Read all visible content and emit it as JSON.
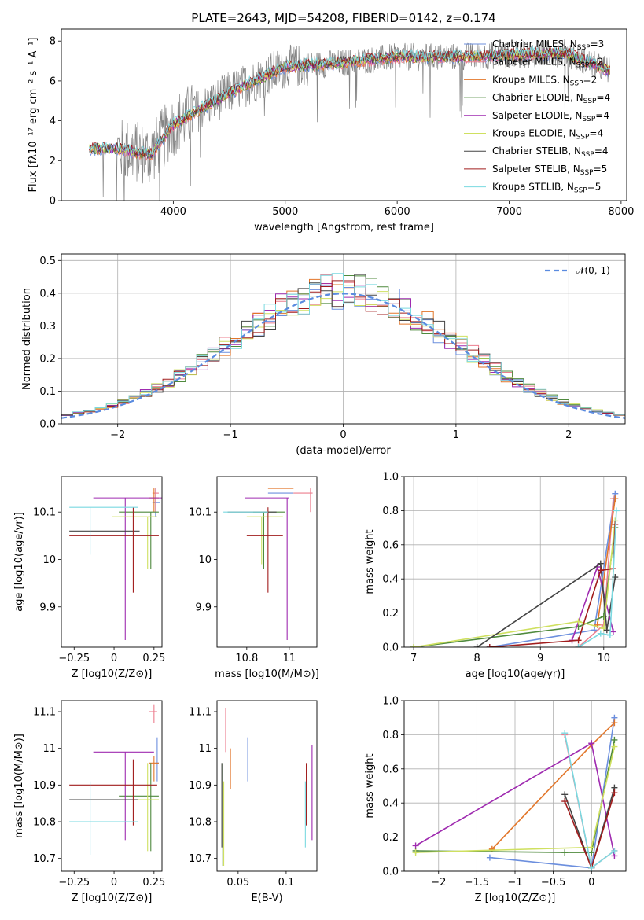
{
  "figure": {
    "title": "PLATE=2643, MJD=54208, FIBERID=0142, z=0.174"
  },
  "colors": {
    "Chabrier MILES": "#6c8fde",
    "Salpeter MILES": "#ec7d8e",
    "Kroupa MILES": "#e2762a",
    "Chabrier ELODIE": "#4f8a3d",
    "Salpeter ELODIE": "#9f2bb0",
    "Kroupa ELODIE": "#cfe060",
    "Chabrier STELIB": "#444444",
    "Salpeter STELIB": "#a11d1d",
    "Kroupa STELIB": "#7ad9e0",
    "data": "#858585",
    "gaussian": "#5a8be0"
  },
  "chart_data": [
    {
      "id": "spectrum",
      "type": "line",
      "title": "PLATE=2643, MJD=54208, FIBERID=0142, z=0.174",
      "xlabel": "wavelength [Angstrom, rest frame]",
      "ylabel": "Flux [f_λ 10^-17 erg cm^-2 s^-1 A^-1]",
      "xlim": [
        3000,
        8050
      ],
      "ylim": [
        0,
        8.6
      ],
      "xticks": [
        4000,
        5000,
        6000,
        7000,
        8000
      ],
      "yticks": [
        0,
        2,
        4,
        6,
        8
      ],
      "legend": "upper right",
      "series": [
        {
          "name": "Chabrier MILES, N_SSP=3"
        },
        {
          "name": "Salpeter MILES, N_SSP=2"
        },
        {
          "name": "Kroupa MILES, N_SSP=2"
        },
        {
          "name": "Chabrier ELODIE, N_SSP=4"
        },
        {
          "name": "Salpeter ELODIE, N_SSP=4"
        },
        {
          "name": "Kroupa ELODIE, N_SSP=4"
        },
        {
          "name": "Chabrier STELIB, N_SSP=4"
        },
        {
          "name": "Salpeter STELIB, N_SSP=5"
        },
        {
          "name": "Kroupa STELIB, N_SSP=5"
        }
      ],
      "data_range": [
        3250,
        7900
      ],
      "continuum": {
        "x": [
          3250,
          3500,
          3800,
          4000,
          4500,
          5000,
          5500,
          6000,
          6500,
          7000,
          7500,
          7900
        ],
        "y": [
          2.6,
          2.6,
          2.3,
          3.8,
          5.4,
          6.7,
          6.9,
          7.2,
          7.2,
          7.3,
          7.4,
          6.5
        ]
      }
    },
    {
      "id": "residuals",
      "type": "line",
      "xlabel": "(data-model)/error",
      "ylabel": "Normed distribution",
      "xlim": [
        -2.5,
        2.5
      ],
      "ylim": [
        0,
        0.52
      ],
      "xticks": [
        -2,
        -1,
        0,
        1,
        2
      ],
      "yticks": [
        0.0,
        0.1,
        0.2,
        0.3,
        0.4,
        0.5
      ],
      "grid": true,
      "legend": "upper right",
      "gaussian_label": "𝒩(0, 1)",
      "bin_width": 0.1
    },
    {
      "id": "age_vs_Z",
      "type": "scatter",
      "xlabel": "Z [log10(Z/Z⊙)]",
      "ylabel": "age  [log10(age/yr)]",
      "xlim": [
        -0.33,
        0.3
      ],
      "ylim": [
        9.815,
        10.175
      ],
      "xticks": [
        -0.25,
        0.0,
        0.25
      ],
      "yticks": [
        9.9,
        10.0,
        10.1
      ],
      "points": [
        {
          "model": "Chabrier MILES",
          "x": 0.26,
          "y": 10.12,
          "xerr": [
            0.02,
            0.03
          ],
          "yerr": [
            0.03,
            0.03
          ]
        },
        {
          "model": "Salpeter MILES",
          "x": 0.26,
          "y": 10.14,
          "xerr": [
            0.02,
            0.02
          ],
          "yerr": [
            0.04,
            0.01
          ]
        },
        {
          "model": "Kroupa MILES",
          "x": 0.25,
          "y": 10.13,
          "xerr": [
            0.03,
            0.03
          ],
          "yerr": [
            0.03,
            0.02
          ]
        },
        {
          "model": "Chabrier ELODIE",
          "x": 0.23,
          "y": 10.1,
          "xerr": [
            0.2,
            0.05
          ],
          "yerr": [
            0.12,
            0.0
          ]
        },
        {
          "model": "Salpeter ELODIE",
          "x": 0.07,
          "y": 10.13,
          "xerr": [
            0.2,
            0.23
          ],
          "yerr": [
            0.3,
            0.0
          ]
        },
        {
          "model": "Kroupa ELODIE",
          "x": 0.21,
          "y": 10.09,
          "xerr": [
            0.22,
            0.06
          ],
          "yerr": [
            0.11,
            0.0
          ]
        },
        {
          "model": "Chabrier STELIB",
          "x": 0.02,
          "y": 10.06,
          "xerr": [
            0.3,
            0.14
          ],
          "yerr": [
            0.0,
            0.0
          ]
        },
        {
          "model": "Salpeter STELIB",
          "x": 0.12,
          "y": 10.05,
          "xerr": [
            0.4,
            0.16
          ],
          "yerr": [
            0.12,
            0.06
          ]
        },
        {
          "model": "Kroupa STELIB",
          "x": -0.15,
          "y": 10.11,
          "xerr": [
            0.13,
            0.3
          ],
          "yerr": [
            0.1,
            0.0
          ]
        }
      ]
    },
    {
      "id": "age_vs_mass",
      "type": "scatter",
      "xlabel": "mass [log10(M/M⊙)]",
      "ylabel": "",
      "xlim": [
        10.66,
        11.13
      ],
      "ylim": [
        9.815,
        10.175
      ],
      "xticks": [
        10.8,
        11.0
      ],
      "yticks": [
        9.9,
        10.0,
        10.1
      ],
      "points": [
        {
          "model": "Chabrier MILES",
          "x": 11.0,
          "y": 10.14,
          "xerr": [
            0.1,
            0.02
          ],
          "yerr": [
            0.0,
            0.0
          ]
        },
        {
          "model": "Salpeter MILES",
          "x": 11.1,
          "y": 10.14,
          "xerr": [
            0.08,
            0.01
          ],
          "yerr": [
            0.04,
            0.01
          ]
        },
        {
          "model": "Kroupa MILES",
          "x": 11.0,
          "y": 10.15,
          "xerr": [
            0.1,
            0.02
          ],
          "yerr": [
            0.0,
            0.0
          ]
        },
        {
          "model": "Chabrier ELODIE",
          "x": 10.88,
          "y": 10.1,
          "xerr": [
            0.05,
            0.1
          ],
          "yerr": [
            0.12,
            0.0
          ]
        },
        {
          "model": "Salpeter ELODIE",
          "x": 10.99,
          "y": 10.13,
          "xerr": [
            0.2,
            0.01
          ],
          "yerr": [
            0.3,
            0.0
          ]
        },
        {
          "model": "Kroupa ELODIE",
          "x": 10.87,
          "y": 10.09,
          "xerr": [
            0.07,
            0.1
          ],
          "yerr": [
            0.1,
            0.0
          ]
        },
        {
          "model": "Chabrier STELIB",
          "x": 10.86,
          "y": 10.1,
          "xerr": [
            0.15,
            0.08
          ],
          "yerr": [
            0.0,
            0.0
          ]
        },
        {
          "model": "Salpeter STELIB",
          "x": 10.9,
          "y": 10.05,
          "xerr": [
            0.1,
            0.07
          ],
          "yerr": [
            0.12,
            0.06
          ]
        },
        {
          "model": "Kroupa STELIB",
          "x": 10.8,
          "y": 10.1,
          "xerr": [
            0.11,
            0.1
          ],
          "yerr": [
            0.0,
            0.0
          ]
        }
      ]
    },
    {
      "id": "massweight_vs_age",
      "type": "line",
      "xlabel": "age  [log10(age/yr)]",
      "ylabel": "mass weight",
      "xlim": [
        6.85,
        10.35
      ],
      "ylim": [
        0.0,
        1.0
      ],
      "xticks": [
        7,
        8,
        9,
        10
      ],
      "yticks": [
        0.0,
        0.2,
        0.4,
        0.6,
        0.8,
        1.0
      ],
      "grid": true,
      "series": [
        {
          "model": "Chabrier MILES",
          "x": [
            8.2,
            9.85,
            10.18
          ],
          "y": [
            0.0,
            0.1,
            0.9
          ]
        },
        {
          "model": "Salpeter MILES",
          "x": [
            9.6,
            10.0,
            10.15
          ],
          "y": [
            0.0,
            0.13,
            0.87
          ]
        },
        {
          "model": "Kroupa MILES",
          "x": [
            9.9,
            10.18
          ],
          "y": [
            0.13,
            0.87
          ]
        },
        {
          "model": "Chabrier ELODIE",
          "x": [
            7.0,
            9.6,
            10.0,
            10.18
          ],
          "y": [
            0.0,
            0.12,
            0.18,
            0.7
          ]
        },
        {
          "model": "Salpeter ELODIE",
          "x": [
            9.5,
            9.9,
            10.15
          ],
          "y": [
            0.04,
            0.47,
            0.09
          ]
        },
        {
          "model": "Kroupa ELODIE",
          "x": [
            7.0,
            9.6,
            10.0,
            10.18
          ],
          "y": [
            0.0,
            0.15,
            0.11,
            0.74
          ]
        },
        {
          "model": "Chabrier STELIB",
          "x": [
            8.0,
            9.95,
            10.05,
            10.18
          ],
          "y": [
            0.0,
            0.49,
            0.1,
            0.41
          ]
        },
        {
          "model": "Salpeter STELIB",
          "x": [
            8.2,
            9.6,
            9.95,
            10.15,
            10.18
          ],
          "y": [
            0.0,
            0.04,
            0.45,
            0.46,
            0.72
          ]
        },
        {
          "model": "Kroupa STELIB",
          "x": [
            9.6,
            9.95,
            10.1,
            10.2
          ],
          "y": [
            0.0,
            0.08,
            0.07,
            0.8
          ]
        }
      ]
    },
    {
      "id": "mass_vs_Z",
      "type": "scatter",
      "xlabel": "Z [log10(Z/Z⊙)]",
      "ylabel": "mass [log10(M/M⊙)]",
      "xlim": [
        -0.33,
        0.3
      ],
      "ylim": [
        10.665,
        11.13
      ],
      "xticks": [
        -0.25,
        0.0,
        0.25
      ],
      "yticks": [
        10.7,
        10.8,
        10.9,
        11.0,
        11.1
      ],
      "points": [
        {
          "model": "Chabrier MILES",
          "x": 0.27,
          "y": 10.96,
          "xerr": [
            0.01,
            0.01
          ],
          "yerr": [
            0.05,
            0.07
          ]
        },
        {
          "model": "Salpeter MILES",
          "x": 0.25,
          "y": 11.1,
          "xerr": [
            0.03,
            0.02
          ],
          "yerr": [
            0.03,
            0.02
          ]
        },
        {
          "model": "Kroupa MILES",
          "x": 0.25,
          "y": 10.96,
          "xerr": [
            0.03,
            0.03
          ],
          "yerr": [
            0.05,
            0.02
          ]
        },
        {
          "model": "Chabrier ELODIE",
          "x": 0.23,
          "y": 10.87,
          "xerr": [
            0.2,
            0.05
          ],
          "yerr": [
            0.15,
            0.09
          ]
        },
        {
          "model": "Salpeter ELODIE",
          "x": 0.07,
          "y": 10.99,
          "xerr": [
            0.2,
            0.18
          ],
          "yerr": [
            0.24,
            0.0
          ]
        },
        {
          "model": "Kroupa ELODIE",
          "x": 0.21,
          "y": 10.86,
          "xerr": [
            0.2,
            0.07
          ],
          "yerr": [
            0.14,
            0.1
          ]
        },
        {
          "model": "Chabrier STELIB",
          "x": 0.02,
          "y": 10.86,
          "xerr": [
            0.3,
            0.13
          ],
          "yerr": [
            0.0,
            0.0
          ]
        },
        {
          "model": "Salpeter STELIB",
          "x": 0.12,
          "y": 10.9,
          "xerr": [
            0.4,
            0.15
          ],
          "yerr": [
            0.11,
            0.07
          ]
        },
        {
          "model": "Kroupa STELIB",
          "x": -0.15,
          "y": 10.8,
          "xerr": [
            0.13,
            0.3
          ],
          "yerr": [
            0.09,
            0.11
          ]
        }
      ]
    },
    {
      "id": "mass_vs_EBV",
      "type": "scatter",
      "xlabel": "E(B-V)",
      "ylabel": "",
      "xlim": [
        0.028,
        0.132
      ],
      "ylim": [
        10.665,
        11.13
      ],
      "xticks": [
        0.05,
        0.1
      ],
      "yticks": [
        10.7,
        10.8,
        10.9,
        11.0,
        11.1
      ],
      "points": [
        {
          "model": "Chabrier MILES",
          "x": 0.06,
          "y": 10.96,
          "xerr": [
            0,
            0
          ],
          "yerr": [
            0.05,
            0.07
          ]
        },
        {
          "model": "Salpeter MILES",
          "x": 0.037,
          "y": 11.04,
          "xerr": [
            0,
            0
          ],
          "yerr": [
            0.05,
            0.07
          ]
        },
        {
          "model": "Kroupa MILES",
          "x": 0.042,
          "y": 10.96,
          "xerr": [
            0,
            0
          ],
          "yerr": [
            0.07,
            0.04
          ]
        },
        {
          "model": "Chabrier ELODIE",
          "x": 0.034,
          "y": 10.88,
          "xerr": [
            0,
            0
          ],
          "yerr": [
            0.2,
            0.08
          ]
        },
        {
          "model": "Salpeter ELODIE",
          "x": 0.127,
          "y": 10.88,
          "xerr": [
            0,
            0
          ],
          "yerr": [
            0.13,
            0.13
          ]
        },
        {
          "model": "Kroupa ELODIE",
          "x": 0.035,
          "y": 10.86,
          "xerr": [
            0,
            0
          ],
          "yerr": [
            0.18,
            0.05
          ]
        },
        {
          "model": "Chabrier STELIB",
          "x": 0.033,
          "y": 10.86,
          "xerr": [
            0,
            0
          ],
          "yerr": [
            0.13,
            0.1
          ]
        },
        {
          "model": "Salpeter STELIB",
          "x": 0.121,
          "y": 10.9,
          "xerr": [
            0,
            0
          ],
          "yerr": [
            0.11,
            0.06
          ]
        },
        {
          "model": "Kroupa STELIB",
          "x": 0.12,
          "y": 10.8,
          "xerr": [
            0,
            0
          ],
          "yerr": [
            0.07,
            0.11
          ]
        }
      ]
    },
    {
      "id": "massweight_vs_Z",
      "type": "line",
      "xlabel": "Z [log10(Z/Z⊙)]",
      "ylabel": "mass weight",
      "xlim": [
        -2.45,
        0.45
      ],
      "ylim": [
        0.0,
        1.0
      ],
      "xticks": [
        -2.0,
        -1.5,
        -1.0,
        -0.5,
        0.0
      ],
      "yticks": [
        0.0,
        0.2,
        0.4,
        0.6,
        0.8,
        1.0
      ],
      "grid": true,
      "series": [
        {
          "model": "Chabrier MILES",
          "x": [
            -1.33,
            0.0,
            0.3
          ],
          "y": [
            0.08,
            0.02,
            0.9
          ]
        },
        {
          "model": "Salpeter MILES",
          "x": [
            -0.35,
            0.0,
            0.3
          ],
          "y": [
            0.8,
            0.02,
            0.12
          ]
        },
        {
          "model": "Kroupa MILES",
          "x": [
            -1.3,
            0.0,
            0.3
          ],
          "y": [
            0.13,
            0.74,
            0.87
          ]
        },
        {
          "model": "Chabrier ELODIE",
          "x": [
            -2.3,
            -0.35,
            0.0,
            0.3
          ],
          "y": [
            0.12,
            0.11,
            0.11,
            0.77
          ]
        },
        {
          "model": "Salpeter ELODIE",
          "x": [
            -2.3,
            0.0,
            0.3
          ],
          "y": [
            0.15,
            0.75,
            0.09
          ]
        },
        {
          "model": "Kroupa ELODIE",
          "x": [
            -2.3,
            0.0,
            0.3
          ],
          "y": [
            0.11,
            0.14,
            0.73
          ]
        },
        {
          "model": "Chabrier STELIB",
          "x": [
            -0.35,
            0.0,
            0.3
          ],
          "y": [
            0.45,
            0.02,
            0.49
          ]
        },
        {
          "model": "Salpeter STELIB",
          "x": [
            -0.35,
            0.0,
            0.3
          ],
          "y": [
            0.41,
            0.02,
            0.46
          ]
        },
        {
          "model": "Kroupa STELIB",
          "x": [
            -0.35,
            0.0,
            0.3
          ],
          "y": [
            0.81,
            0.02,
            0.12
          ]
        }
      ]
    }
  ]
}
